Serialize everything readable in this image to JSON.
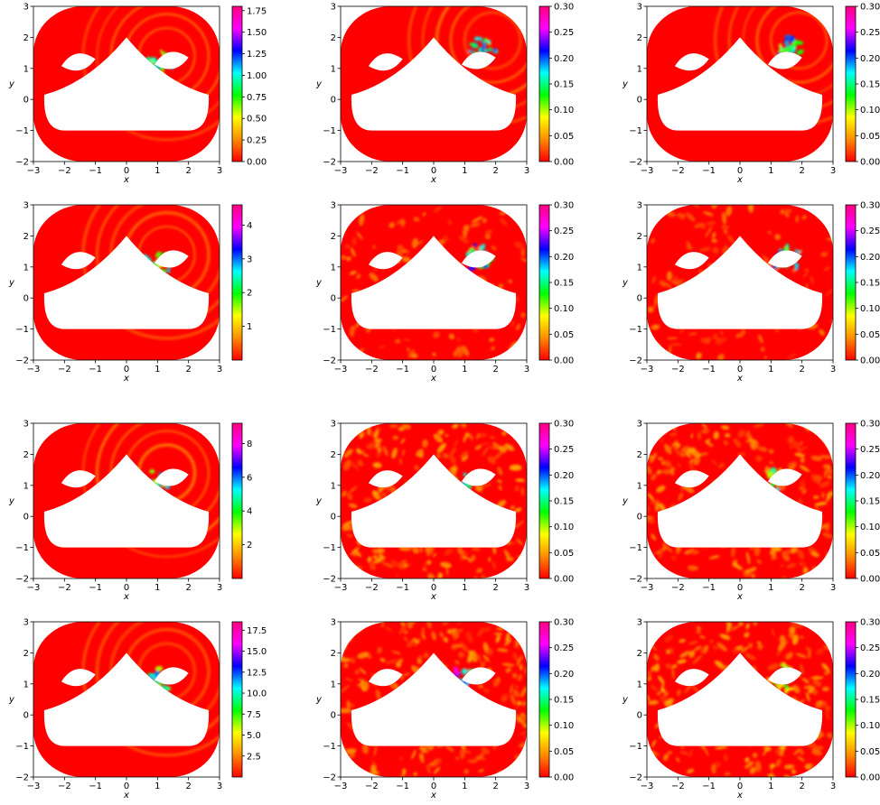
{
  "figure": {
    "rows": 4,
    "cols": 3
  },
  "colormap": {
    "name": "gist_rainbow_r",
    "stops": [
      "#ff0000",
      "#ff8c00",
      "#ffff00",
      "#00ff00",
      "#00ffff",
      "#0000ff",
      "#ff00ff",
      "#ff0080"
    ]
  },
  "chart_data": [
    {
      "type": "heatmap",
      "row": 1,
      "col": 1,
      "xlabel": "x",
      "ylabel": "y",
      "xlim": [
        -3,
        3
      ],
      "ylim": [
        -2,
        3
      ],
      "x_ticks": [
        "−3",
        "−2",
        "−1",
        "0",
        "1",
        "2",
        "3"
      ],
      "y_ticks": [
        "−2",
        "−1",
        "0",
        "1",
        "2",
        "3"
      ],
      "colorbar": {
        "min": 0,
        "max": 1.8,
        "ticks": [
          0,
          0.25,
          0.5,
          0.75,
          1.0,
          1.25,
          1.5,
          1.75
        ],
        "tick_labels": [
          "0.00",
          "0.25",
          "0.50",
          "0.75",
          "1.00",
          "1.25",
          "1.50",
          "1.75"
        ]
      },
      "vortex_center": [
        1.0,
        1.1
      ],
      "peak_level": 0.65,
      "texture": "wave-fronts"
    },
    {
      "type": "heatmap",
      "row": 1,
      "col": 2,
      "xlabel": "x",
      "ylabel": "y",
      "xlim": [
        -3,
        3
      ],
      "ylim": [
        -2,
        3
      ],
      "x_ticks": [
        "−3",
        "−2",
        "−1",
        "0",
        "1",
        "2",
        "3"
      ],
      "y_ticks": [
        "−2",
        "−1",
        "0",
        "1",
        "2",
        "3"
      ],
      "colorbar": {
        "min": 0,
        "max": 0.3,
        "ticks": [
          0,
          0.05,
          0.1,
          0.15,
          0.2,
          0.25,
          0.3
        ],
        "tick_labels": [
          "0.00",
          "0.05",
          "0.10",
          "0.15",
          "0.20",
          "0.25",
          "0.30"
        ]
      },
      "vortex_center": [
        1.6,
        1.6
      ],
      "peak_level": 0.75,
      "texture": "wave-fronts"
    },
    {
      "type": "heatmap",
      "row": 1,
      "col": 3,
      "xlabel": "x",
      "ylabel": "y",
      "xlim": [
        -3,
        3
      ],
      "ylim": [
        -2,
        3
      ],
      "x_ticks": [
        "−3",
        "−2",
        "−1",
        "0",
        "1",
        "2",
        "3"
      ],
      "y_ticks": [
        "−2",
        "−1",
        "0",
        "1",
        "2",
        "3"
      ],
      "colorbar": {
        "min": 0,
        "max": 0.3,
        "ticks": [
          0,
          0.05,
          0.1,
          0.15,
          0.2,
          0.25,
          0.3
        ],
        "tick_labels": [
          "0.00",
          "0.05",
          "0.10",
          "0.15",
          "0.20",
          "0.25",
          "0.30"
        ]
      },
      "vortex_center": [
        1.6,
        1.6
      ],
      "peak_level": 0.7,
      "texture": "wave-fronts"
    },
    {
      "type": "heatmap",
      "row": 2,
      "col": 1,
      "xlabel": "x",
      "ylabel": "y",
      "xlim": [
        -3,
        3
      ],
      "ylim": [
        -2,
        3
      ],
      "x_ticks": [
        "−3",
        "−2",
        "−1",
        "0",
        "1",
        "2",
        "3"
      ],
      "y_ticks": [
        "−2",
        "−1",
        "0",
        "1",
        "2",
        "3"
      ],
      "colorbar": {
        "min": 0,
        "max": 4.6,
        "ticks": [
          1,
          2,
          3,
          4
        ],
        "tick_labels": [
          "1",
          "2",
          "3",
          "4"
        ]
      },
      "vortex_center": [
        1.0,
        1.1
      ],
      "peak_level": 0.6,
      "texture": "wave-fronts"
    },
    {
      "type": "heatmap",
      "row": 2,
      "col": 2,
      "xlabel": "x",
      "ylabel": "y",
      "xlim": [
        -3,
        3
      ],
      "ylim": [
        -2,
        3
      ],
      "x_ticks": [
        "−3",
        "−2",
        "−1",
        "0",
        "1",
        "2",
        "3"
      ],
      "y_ticks": [
        "−2",
        "−1",
        "0",
        "1",
        "2",
        "3"
      ],
      "colorbar": {
        "min": 0,
        "max": 0.3,
        "ticks": [
          0,
          0.05,
          0.1,
          0.15,
          0.2,
          0.25,
          0.3
        ],
        "tick_labels": [
          "0.00",
          "0.05",
          "0.10",
          "0.15",
          "0.20",
          "0.25",
          "0.30"
        ]
      },
      "vortex_center": [
        1.5,
        1.3
      ],
      "peak_level": 0.75,
      "texture": "mixed"
    },
    {
      "type": "heatmap",
      "row": 2,
      "col": 3,
      "xlabel": "x",
      "ylabel": "y",
      "xlim": [
        -3,
        3
      ],
      "ylim": [
        -2,
        3
      ],
      "x_ticks": [
        "−3",
        "−2",
        "−1",
        "0",
        "1",
        "2",
        "3"
      ],
      "y_ticks": [
        "−2",
        "−1",
        "0",
        "1",
        "2",
        "3"
      ],
      "colorbar": {
        "min": 0,
        "max": 0.3,
        "ticks": [
          0,
          0.05,
          0.1,
          0.15,
          0.2,
          0.25,
          0.3
        ],
        "tick_labels": [
          "0.00",
          "0.05",
          "0.10",
          "0.15",
          "0.20",
          "0.25",
          "0.30"
        ]
      },
      "vortex_center": [
        1.5,
        1.3
      ],
      "peak_level": 0.7,
      "texture": "mixed"
    },
    {
      "type": "heatmap",
      "row": 3,
      "col": 1,
      "xlabel": "x",
      "ylabel": "y",
      "xlim": [
        -3,
        3
      ],
      "ylim": [
        -2,
        3
      ],
      "x_ticks": [
        "−3",
        "−2",
        "−1",
        "0",
        "1",
        "2",
        "3"
      ],
      "y_ticks": [
        "−2",
        "−1",
        "0",
        "1",
        "2",
        "3"
      ],
      "colorbar": {
        "min": 0,
        "max": 9.2,
        "ticks": [
          2,
          4,
          6,
          8
        ],
        "tick_labels": [
          "2",
          "4",
          "6",
          "8"
        ]
      },
      "vortex_center": [
        1.0,
        1.1
      ],
      "peak_level": 0.65,
      "texture": "wave-fronts"
    },
    {
      "type": "heatmap",
      "row": 3,
      "col": 2,
      "xlabel": "x",
      "ylabel": "y",
      "xlim": [
        -3,
        3
      ],
      "ylim": [
        -2,
        3
      ],
      "x_ticks": [
        "−3",
        "−2",
        "−1",
        "0",
        "1",
        "2",
        "3"
      ],
      "y_ticks": [
        "−2",
        "−1",
        "0",
        "1",
        "2",
        "3"
      ],
      "colorbar": {
        "min": 0,
        "max": 0.3,
        "ticks": [
          0,
          0.05,
          0.1,
          0.15,
          0.2,
          0.25,
          0.3
        ],
        "tick_labels": [
          "0.00",
          "0.05",
          "0.10",
          "0.15",
          "0.20",
          "0.25",
          "0.30"
        ]
      },
      "vortex_center": [
        1.0,
        1.0
      ],
      "peak_level": 0.75,
      "texture": "turbulent"
    },
    {
      "type": "heatmap",
      "row": 3,
      "col": 3,
      "xlabel": "x",
      "ylabel": "y",
      "xlim": [
        -3,
        3
      ],
      "ylim": [
        -2,
        3
      ],
      "x_ticks": [
        "−3",
        "−2",
        "−1",
        "0",
        "1",
        "2",
        "3"
      ],
      "y_ticks": [
        "−2",
        "−1",
        "0",
        "1",
        "2",
        "3"
      ],
      "colorbar": {
        "min": 0,
        "max": 0.3,
        "ticks": [
          0,
          0.05,
          0.1,
          0.15,
          0.2,
          0.25,
          0.3
        ],
        "tick_labels": [
          "0.00",
          "0.05",
          "0.10",
          "0.15",
          "0.20",
          "0.25",
          "0.30"
        ]
      },
      "vortex_center": [
        1.2,
        1.2
      ],
      "peak_level": 0.6,
      "texture": "turbulent"
    },
    {
      "type": "heatmap",
      "row": 4,
      "col": 1,
      "xlabel": "x",
      "ylabel": "y",
      "xlim": [
        -3,
        3
      ],
      "ylim": [
        -2,
        3
      ],
      "x_ticks": [
        "−3",
        "−2",
        "−1",
        "0",
        "1",
        "2",
        "3"
      ],
      "y_ticks": [
        "−2",
        "−1",
        "0",
        "1",
        "2",
        "3"
      ],
      "colorbar": {
        "min": 0,
        "max": 18.5,
        "ticks": [
          2.5,
          5,
          7.5,
          10,
          12.5,
          15,
          17.5
        ],
        "tick_labels": [
          "2.5",
          "5.0",
          "7.5",
          "10.0",
          "12.5",
          "15.0",
          "17.5"
        ]
      },
      "vortex_center": [
        1.0,
        1.1
      ],
      "peak_level": 0.7,
      "texture": "wave-fronts"
    },
    {
      "type": "heatmap",
      "row": 4,
      "col": 2,
      "xlabel": "x",
      "ylabel": "y",
      "xlim": [
        -3,
        3
      ],
      "ylim": [
        -2,
        3
      ],
      "x_ticks": [
        "−3",
        "−2",
        "−1",
        "0",
        "1",
        "2",
        "3"
      ],
      "y_ticks": [
        "−2",
        "−1",
        "0",
        "1",
        "2",
        "3"
      ],
      "colorbar": {
        "min": 0,
        "max": 0.3,
        "ticks": [
          0,
          0.05,
          0.1,
          0.15,
          0.2,
          0.25,
          0.3
        ],
        "tick_labels": [
          "0.00",
          "0.05",
          "0.10",
          "0.15",
          "0.20",
          "0.25",
          "0.30"
        ]
      },
      "vortex_center": [
        1.0,
        1.1
      ],
      "peak_level": 0.9,
      "texture": "turbulent"
    },
    {
      "type": "heatmap",
      "row": 4,
      "col": 3,
      "xlabel": "x",
      "ylabel": "y",
      "xlim": [
        -3,
        3
      ],
      "ylim": [
        -2,
        3
      ],
      "x_ticks": [
        "−3",
        "−2",
        "−1",
        "0",
        "1",
        "2",
        "3"
      ],
      "y_ticks": [
        "−2",
        "−1",
        "0",
        "1",
        "2",
        "3"
      ],
      "colorbar": {
        "min": 0,
        "max": 0.3,
        "ticks": [
          0,
          0.05,
          0.1,
          0.15,
          0.2,
          0.25,
          0.3
        ],
        "tick_labels": [
          "0.00",
          "0.05",
          "0.10",
          "0.15",
          "0.20",
          "0.25",
          "0.30"
        ]
      },
      "vortex_center": [
        1.4,
        1.2
      ],
      "peak_level": 0.45,
      "texture": "turbulent"
    }
  ]
}
